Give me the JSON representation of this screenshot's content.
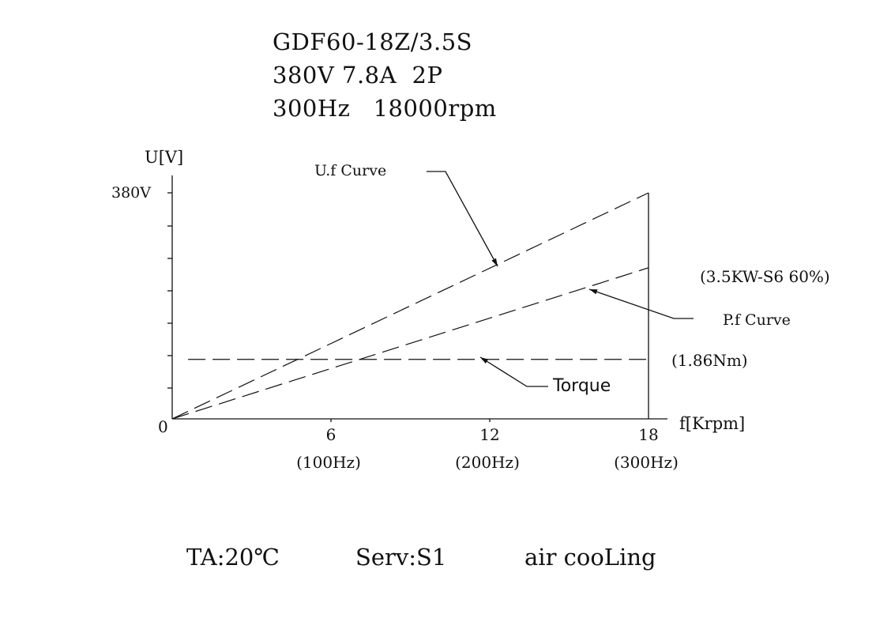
{
  "header": {
    "model": "GDF60-18Z/3.5S",
    "line2": "380V 7.8A  2P",
    "line3": "300Hz   18000rpm"
  },
  "footer": {
    "ta": "TA:20℃",
    "serv": "Serv:S1",
    "cooling": "air cooLing"
  },
  "chart_data": {
    "type": "line",
    "ylabel": "U[V]",
    "xlabel": "f[Krpm]",
    "origin_label": "0",
    "y_tick_label": "380V",
    "xlim": [
      0,
      18
    ],
    "ylim": [
      0,
      380
    ],
    "x_ticks": [
      {
        "value": 6,
        "label": "6",
        "sublabel": "(100Hz)"
      },
      {
        "value": 12,
        "label": "12",
        "sublabel": "(200Hz)"
      },
      {
        "value": 18,
        "label": "18",
        "sublabel": "(300Hz)"
      }
    ],
    "series": [
      {
        "name": "U.f Curve",
        "x": [
          0,
          18
        ],
        "y": [
          0,
          380
        ]
      },
      {
        "name": "P.f Curve",
        "x": [
          0,
          18
        ],
        "y": [
          0,
          254
        ],
        "annotation": "(3.5KW-S6 60%)"
      },
      {
        "name": "Torque",
        "x": [
          0.6,
          18
        ],
        "y": [
          100,
          100
        ],
        "annotation": "(1.86Nm)"
      }
    ]
  }
}
